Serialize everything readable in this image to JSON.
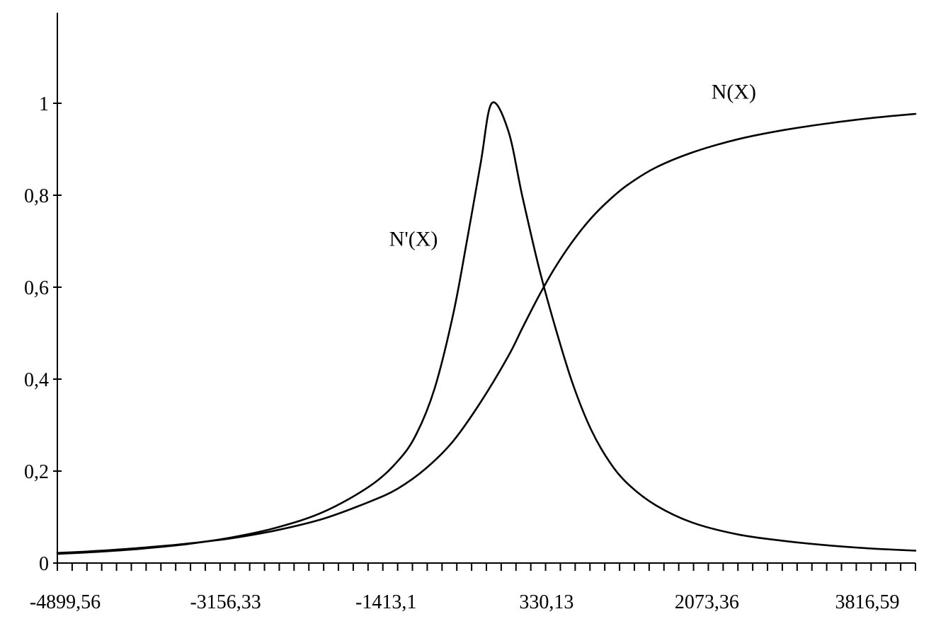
{
  "chart_data": {
    "type": "line",
    "title": "",
    "xlabel": "",
    "ylabel": "",
    "xlim": [
      -4899.56,
      4424.0
    ],
    "ylim": [
      0,
      1.2
    ],
    "grid": false,
    "legend": "none",
    "x_tick_labels": [
      {
        "value": -4899.56,
        "label": "-4899,56"
      },
      {
        "value": -3156.33,
        "label": "-3156,33"
      },
      {
        "value": -1413.1,
        "label": "-1413,1"
      },
      {
        "value": 330.13,
        "label": "330,13"
      },
      {
        "value": 2073.36,
        "label": "2073,36"
      },
      {
        "value": 3816.59,
        "label": "3816,59"
      }
    ],
    "y_tick_labels": [
      {
        "value": 0,
        "label": "0"
      },
      {
        "value": 0.2,
        "label": "0,2"
      },
      {
        "value": 0.4,
        "label": "0,4"
      },
      {
        "value": 0.6,
        "label": "0,6"
      },
      {
        "value": 0.8,
        "label": "0,8"
      },
      {
        "value": 1,
        "label": "1"
      }
    ],
    "series": [
      {
        "name": "N(X)",
        "color": "#000000",
        "label_at": {
          "x": 2450,
          "y": 1.01
        },
        "points": [
          [
            -4899.56,
            0.022
          ],
          [
            -4500,
            0.026
          ],
          [
            -4000,
            0.033
          ],
          [
            -3500,
            0.042
          ],
          [
            -3000,
            0.054
          ],
          [
            -2500,
            0.072
          ],
          [
            -2000,
            0.097
          ],
          [
            -1500,
            0.134
          ],
          [
            -1200,
            0.162
          ],
          [
            -900,
            0.205
          ],
          [
            -600,
            0.265
          ],
          [
            -300,
            0.35
          ],
          [
            0,
            0.45
          ],
          [
            150,
            0.51
          ],
          [
            330,
            0.58
          ],
          [
            500,
            0.64
          ],
          [
            700,
            0.7
          ],
          [
            900,
            0.75
          ],
          [
            1100,
            0.79
          ],
          [
            1300,
            0.823
          ],
          [
            1600,
            0.86
          ],
          [
            2000,
            0.893
          ],
          [
            2500,
            0.922
          ],
          [
            3000,
            0.942
          ],
          [
            3500,
            0.957
          ],
          [
            4000,
            0.969
          ],
          [
            4424,
            0.977
          ]
        ]
      },
      {
        "name": "N'(X)",
        "color": "#000000",
        "label_at": {
          "x": -1030,
          "y": 0.69
        },
        "points": [
          [
            -4899.56,
            0.02
          ],
          [
            -4500,
            0.024
          ],
          [
            -4000,
            0.031
          ],
          [
            -3500,
            0.041
          ],
          [
            -3000,
            0.056
          ],
          [
            -2500,
            0.078
          ],
          [
            -2000,
            0.112
          ],
          [
            -1500,
            0.168
          ],
          [
            -1200,
            0.222
          ],
          [
            -1000,
            0.28
          ],
          [
            -800,
            0.38
          ],
          [
            -600,
            0.54
          ],
          [
            -450,
            0.7
          ],
          [
            -300,
            0.87
          ],
          [
            -180,
            1.0
          ],
          [
            0,
            0.94
          ],
          [
            150,
            0.8
          ],
          [
            330,
            0.645
          ],
          [
            500,
            0.52
          ],
          [
            700,
            0.39
          ],
          [
            900,
            0.29
          ],
          [
            1100,
            0.22
          ],
          [
            1300,
            0.172
          ],
          [
            1600,
            0.126
          ],
          [
            2000,
            0.088
          ],
          [
            2500,
            0.062
          ],
          [
            3000,
            0.048
          ],
          [
            3500,
            0.038
          ],
          [
            4000,
            0.031
          ],
          [
            4424,
            0.027
          ]
        ]
      }
    ]
  }
}
